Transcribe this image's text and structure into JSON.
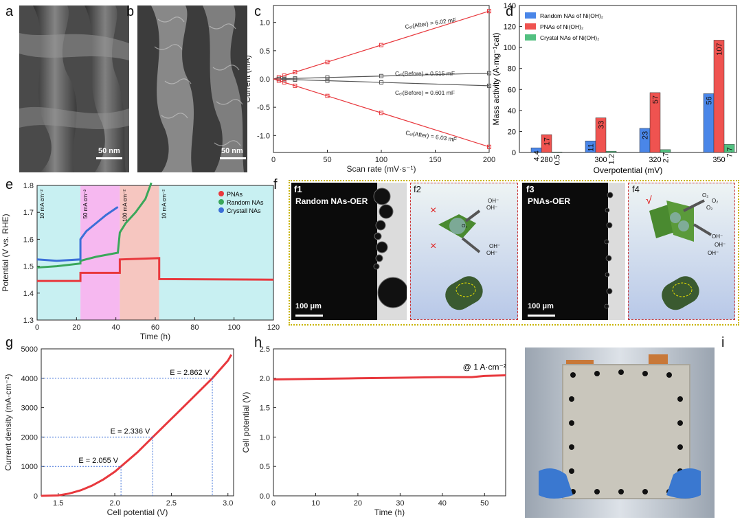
{
  "panel_labels": [
    "a",
    "b",
    "c",
    "d",
    "e",
    "f",
    "g",
    "h",
    "i"
  ],
  "sem": {
    "a": {
      "scale": "50 nm"
    },
    "b": {
      "scale": "50 nm"
    }
  },
  "panel_f": {
    "f1": {
      "label": "f1",
      "title": "Random NAs-OER",
      "scale": "100 μm"
    },
    "f2": {
      "label": "f2",
      "mark": "×",
      "ions": [
        "O₂",
        "OH⁻",
        "OH⁻",
        "OH⁻",
        "OH⁻"
      ]
    },
    "f3": {
      "label": "f3",
      "title": "PNAs-OER",
      "scale": "100 μm"
    },
    "f4": {
      "label": "f4",
      "mark": "√",
      "ions": [
        "O₂",
        "O₂",
        "O₂",
        "OH⁻",
        "OH⁻",
        "OH⁻"
      ]
    }
  },
  "colors": {
    "red": "#e8383d",
    "dark": "#555555",
    "blue": "#3b6fd8",
    "green": "#3aa75a",
    "bar_blue": "#4a86e8",
    "bar_red": "#ef5350",
    "bar_green": "#52c080"
  },
  "chart_data": [
    {
      "id": "c",
      "type": "line",
      "xlabel": "Scan rate (mV·s⁻¹)",
      "ylabel": "Current (mA)",
      "xlim": [
        0,
        200
      ],
      "ylim": [
        -1.3,
        1.3
      ],
      "xticks": [
        0,
        50,
        100,
        150,
        200
      ],
      "yticks": [
        -1.0,
        -0.5,
        0.0,
        0.5,
        1.0
      ],
      "x": [
        5,
        10,
        20,
        50,
        100,
        200
      ],
      "series": [
        {
          "values": [
            0.03,
            0.06,
            0.12,
            0.3,
            0.6,
            1.2
          ],
          "color": "#e8383d"
        },
        {
          "values": [
            0.003,
            0.005,
            0.01,
            0.026,
            0.052,
            0.103
          ],
          "color": "#555555"
        },
        {
          "values": [
            -0.003,
            -0.006,
            -0.012,
            -0.03,
            -0.06,
            -0.12
          ],
          "color": "#555555"
        },
        {
          "values": [
            -0.03,
            -0.06,
            -0.12,
            -0.3,
            -0.6,
            -1.2
          ],
          "color": "#e8383d"
        }
      ],
      "annotations": [
        "Cₑₗ(After) = 6.02 mF",
        "Cₑₗ(Before) = 0.515 mF",
        "Cₑₗ(Before) = 0.601 mF",
        "Cₑₗ(After) = 6.03 mF"
      ]
    },
    {
      "id": "d",
      "type": "bar",
      "xlabel": "Overpotential (mV)",
      "ylabel": "Mass activity (A·mg⁻¹cat)",
      "ylim": [
        0,
        140
      ],
      "yticks": [
        0,
        20,
        40,
        60,
        80,
        100,
        120,
        140
      ],
      "categories": [
        "280",
        "300",
        "320",
        "350"
      ],
      "series": [
        {
          "name": "Random NAs of Ni(OH)₂",
          "values": [
            4.4,
            11,
            23,
            56
          ],
          "labels": [
            "4.4",
            "11",
            "23",
            "56"
          ],
          "color": "#4a86e8"
        },
        {
          "name": "PNAs of Ni(OH)₂",
          "values": [
            17,
            33,
            57,
            107
          ],
          "labels": [
            "17",
            "33",
            "57",
            "107"
          ],
          "color": "#ef5350"
        },
        {
          "name": "Crystal NAs of Ni(OH)₂",
          "values": [
            0.5,
            1.2,
            2.7,
            7.7
          ],
          "labels": [
            "0.5",
            "1.2",
            "2.7",
            "7.7"
          ],
          "color": "#52c080"
        }
      ],
      "legend": "top-left"
    },
    {
      "id": "e",
      "type": "line",
      "xlabel": "Time (h)",
      "ylabel": "Potential (V vs. RHE)",
      "xlim": [
        0,
        120
      ],
      "ylim": [
        1.3,
        1.8
      ],
      "xticks": [
        0,
        20,
        40,
        60,
        80,
        100,
        120
      ],
      "yticks": [
        1.3,
        1.4,
        1.5,
        1.6,
        1.7,
        1.8
      ],
      "regions": [
        {
          "x": [
            0,
            22
          ],
          "label": "10 mA cm⁻²",
          "color": "#c8f0f2"
        },
        {
          "x": [
            22,
            42
          ],
          "label": "50 mA cm⁻²",
          "color": "#f6b8f0"
        },
        {
          "x": [
            42,
            62
          ],
          "label": "100 mA cm⁻²",
          "color": "#f6c6c0"
        },
        {
          "x": [
            62,
            120
          ],
          "label": "10 mA cm⁻²",
          "color": "#c8f0f2"
        }
      ],
      "series": [
        {
          "name": "PNAs",
          "color": "#e8383d",
          "x": [
            0,
            22,
            22,
            42,
            42,
            62,
            62,
            120
          ],
          "values": [
            1.445,
            1.445,
            1.475,
            1.475,
            1.525,
            1.53,
            1.452,
            1.45
          ]
        },
        {
          "name": "Random NAs",
          "color": "#3aa75a",
          "x": [
            0,
            10,
            22,
            22,
            30,
            41,
            42,
            45,
            50,
            55,
            58
          ],
          "values": [
            1.495,
            1.5,
            1.51,
            1.52,
            1.535,
            1.55,
            1.625,
            1.66,
            1.7,
            1.75,
            1.81
          ]
        },
        {
          "name": "Crystall NAs",
          "color": "#3b6fd8",
          "x": [
            0,
            10,
            22,
            22,
            25,
            30,
            35,
            41
          ],
          "values": [
            1.525,
            1.52,
            1.525,
            1.6,
            1.63,
            1.66,
            1.69,
            1.72
          ]
        }
      ],
      "legend": "top-right"
    },
    {
      "id": "g",
      "type": "line",
      "xlabel": "Cell potential (V)",
      "ylabel": "Current density (mA·cm⁻²)",
      "xlim": [
        1.35,
        3.05
      ],
      "ylim": [
        0,
        5000
      ],
      "xticks": [
        1.5,
        2.0,
        2.5,
        3.0
      ],
      "yticks": [
        0,
        1000,
        2000,
        3000,
        4000,
        5000
      ],
      "series": [
        {
          "color": "#e8383d",
          "x": [
            1.35,
            1.5,
            1.6,
            1.7,
            1.8,
            1.9,
            2.0,
            2.055,
            2.2,
            2.336,
            2.5,
            2.7,
            2.862,
            3.0,
            3.03
          ],
          "values": [
            0,
            15,
            80,
            190,
            350,
            560,
            820,
            1000,
            1480,
            2000,
            2620,
            3380,
            4000,
            4600,
            4800
          ]
        }
      ],
      "markers": [
        {
          "x": 2.055,
          "y": 1000,
          "label": "E = 2.055 V"
        },
        {
          "x": 2.336,
          "y": 2000,
          "label": "E = 2.336 V"
        },
        {
          "x": 2.862,
          "y": 4000,
          "label": "E = 2.862 V"
        }
      ]
    },
    {
      "id": "h",
      "type": "line",
      "xlabel": "Time (h)",
      "ylabel": "Cell potential (V)",
      "xlim": [
        0,
        55
      ],
      "ylim": [
        0,
        2.5
      ],
      "xticks": [
        0,
        10,
        20,
        30,
        40,
        50
      ],
      "yticks": [
        0.0,
        0.5,
        1.0,
        1.5,
        2.0,
        2.5
      ],
      "series": [
        {
          "color": "#e8383d",
          "x": [
            0,
            10,
            20,
            30,
            40,
            47,
            50,
            55
          ],
          "values": [
            1.98,
            1.99,
            2.0,
            2.01,
            2.02,
            2.02,
            2.04,
            2.05
          ]
        }
      ],
      "annotation": "@ 1 A·cm⁻²"
    }
  ]
}
